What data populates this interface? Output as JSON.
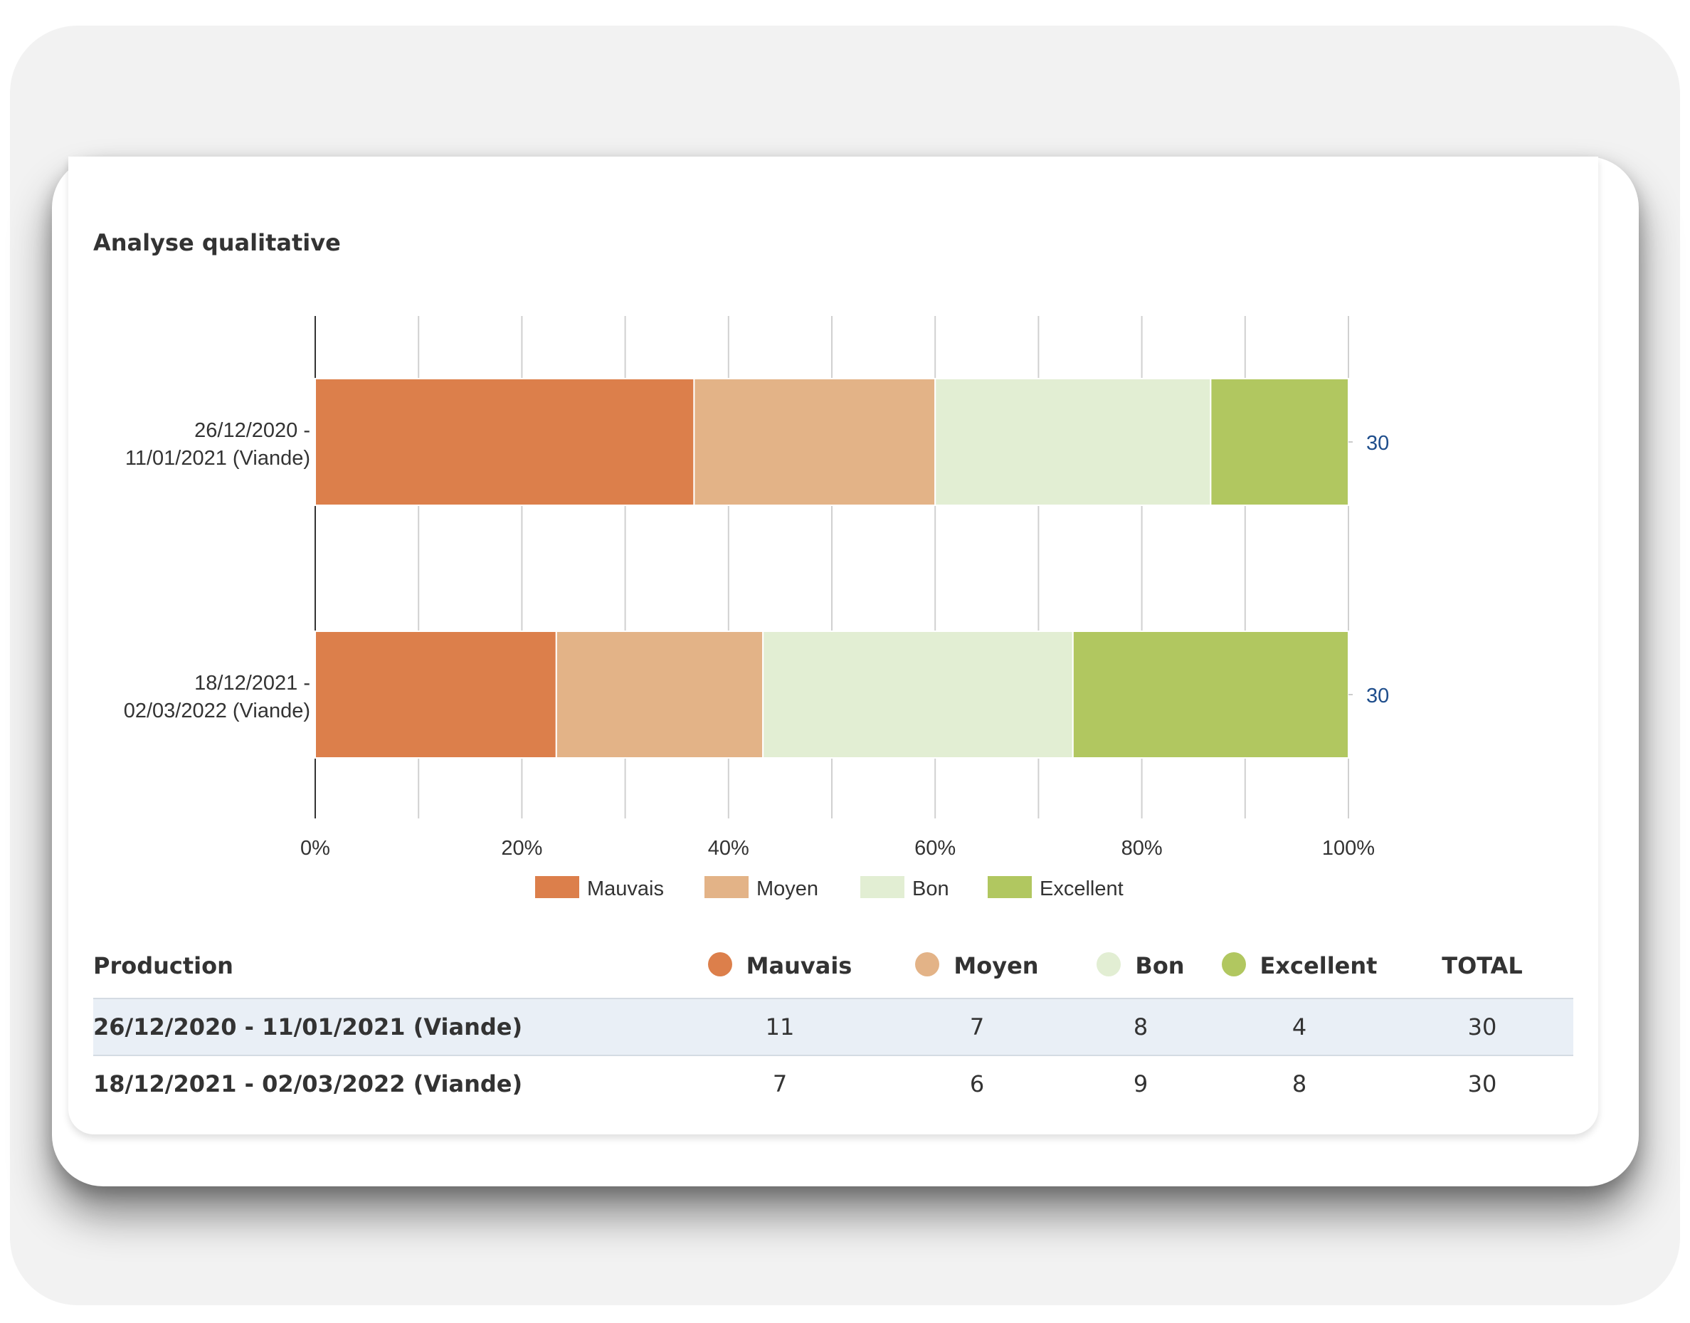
{
  "title": "Analyse qualitative",
  "colors": {
    "Mauvais": "#dc7f4b",
    "Moyen": "#e3b387",
    "Bon": "#e2eed3",
    "Excellent": "#b1c760",
    "total_label": "#1f4e8c"
  },
  "chart_data": {
    "type": "bar",
    "orientation": "horizontal",
    "stacking": "percent",
    "title": "Analyse qualitative",
    "categories": [
      [
        "26/12/2020 -",
        "11/01/2021 (Viande)"
      ],
      [
        "18/12/2021 -",
        "02/03/2022 (Viande)"
      ]
    ],
    "series": [
      {
        "name": "Mauvais",
        "values": [
          11,
          7
        ]
      },
      {
        "name": "Moyen",
        "values": [
          7,
          6
        ]
      },
      {
        "name": "Bon",
        "values": [
          8,
          9
        ]
      },
      {
        "name": "Excellent",
        "values": [
          4,
          8
        ]
      }
    ],
    "totals": [
      "30",
      "30"
    ],
    "xlim": [
      0,
      100
    ],
    "xticks": [
      "0%",
      "20%",
      "40%",
      "60%",
      "80%",
      "100%"
    ],
    "grid": true,
    "legend": [
      "Mauvais",
      "Moyen",
      "Bon",
      "Excellent"
    ],
    "legend_position": "bottom"
  },
  "table": {
    "headers": {
      "production": "Production",
      "mauvais": "Mauvais",
      "moyen": "Moyen",
      "bon": "Bon",
      "excellent": "Excellent",
      "total": "TOTAL"
    },
    "rows": [
      {
        "production": "26/12/2020 - 11/01/2021 (Viande)",
        "mauvais": "11",
        "moyen": "7",
        "bon": "8",
        "excellent": "4",
        "total": "30"
      },
      {
        "production": "18/12/2021 - 02/03/2022 (Viande)",
        "mauvais": "7",
        "moyen": "6",
        "bon": "9",
        "excellent": "8",
        "total": "30"
      }
    ]
  }
}
